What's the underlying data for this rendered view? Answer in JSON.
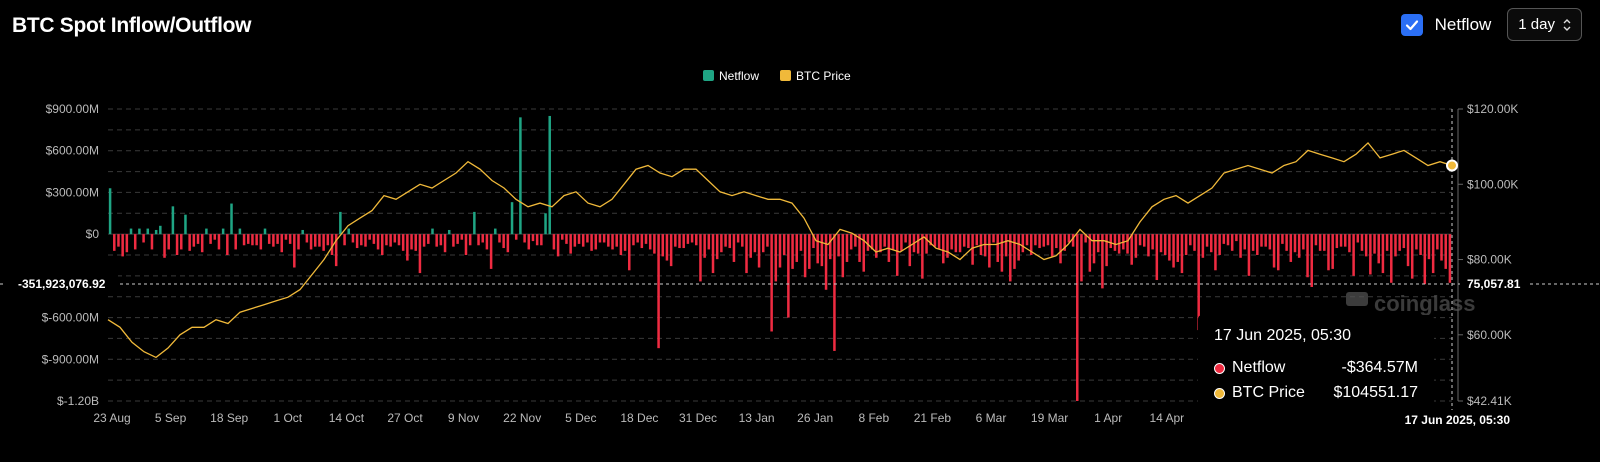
{
  "header": {
    "title": "BTC Spot Inflow/Outflow",
    "netflow_toggle_label": "Netflow",
    "interval_value": "1 day"
  },
  "colors": {
    "positive": "#1fa584",
    "negative": "#ef2b41",
    "price": "#f0b93a",
    "checkbox": "#2b6ff5",
    "grid": "#3a3a3a"
  },
  "tooltip": {
    "date": "17 Jun 2025, 05:30",
    "rows": [
      {
        "name": "Netflow",
        "value": "-$364.57M",
        "color": "#ef2b41"
      },
      {
        "name": "BTC Price",
        "value": "$104551.17",
        "color": "#f0b93a"
      }
    ]
  },
  "crosshair": {
    "left_label": "-351,923,076.92",
    "right_label": "75,057.81",
    "x_label": "17 Jun 2025, 05:30"
  },
  "watermark": "coinglass",
  "chart_data": {
    "type": "bar",
    "title": "BTC Spot Inflow/Outflow",
    "legend": [
      "Netflow",
      "BTC Price"
    ],
    "legend_position": "top-center",
    "grid": true,
    "x_ticks": [
      "23 Aug",
      "5 Sep",
      "18 Sep",
      "1 Oct",
      "14 Oct",
      "27 Oct",
      "9 Nov",
      "22 Nov",
      "5 Dec",
      "18 Dec",
      "31 Dec",
      "13 Jan",
      "26 Jan",
      "8 Feb",
      "21 Feb",
      "6 Mar",
      "19 Mar",
      "1 Apr",
      "14 Apr"
    ],
    "y_left_ticks": [
      "$900.00M",
      "$600.00M",
      "$300.00M",
      "$0",
      "$-600.00M",
      "$-900.00M",
      "$-1.20B"
    ],
    "y_left_range": [
      -1200,
      900
    ],
    "y_right_ticks": [
      "$120.00K",
      "$100.00K",
      "$80.00K",
      "$60.00K",
      "$42.41K"
    ],
    "y_right_range": [
      42410,
      120000
    ],
    "series": [
      {
        "name": "Netflow",
        "unit": "USD millions",
        "values": [
          330,
          -120,
          -90,
          -160,
          -130,
          40,
          -110,
          40,
          -60,
          40,
          -110,
          30,
          60,
          -170,
          -110,
          200,
          -150,
          -110,
          140,
          -120,
          -90,
          -70,
          -130,
          40,
          -70,
          -40,
          -110,
          40,
          -150,
          220,
          -110,
          40,
          -80,
          -70,
          -80,
          -80,
          -110,
          40,
          -70,
          -90,
          -70,
          -130,
          -40,
          -70,
          -240,
          -110,
          30,
          -60,
          -110,
          -90,
          -90,
          -120,
          -80,
          -150,
          -230,
          160,
          -80,
          40,
          -60,
          -100,
          -80,
          -90,
          -40,
          -70,
          -110,
          -150,
          -80,
          -90,
          -60,
          -80,
          -120,
          -190,
          -110,
          -120,
          -280,
          -90,
          -70,
          40,
          -90,
          -80,
          -130,
          30,
          -90,
          -70,
          -40,
          -150,
          -80,
          160,
          -80,
          -60,
          -110,
          -250,
          40,
          -60,
          -100,
          -130,
          230,
          -40,
          840,
          -60,
          -110,
          -50,
          -80,
          -80,
          150,
          850,
          -110,
          -160,
          -40,
          -70,
          -140,
          -90,
          -70,
          -90,
          -60,
          -120,
          -110,
          -60,
          -60,
          -90,
          -110,
          -90,
          -150,
          -120,
          -260,
          -80,
          -60,
          -100,
          -70,
          -110,
          -140,
          -820,
          -160,
          -190,
          -230,
          -90,
          -100,
          -100,
          -70,
          -60,
          -80,
          -340,
          -170,
          -110,
          -280,
          -180,
          -130,
          -90,
          -100,
          -200,
          -60,
          -90,
          -280,
          -170,
          -130,
          -240,
          -130,
          -90,
          -700,
          -340,
          -240,
          -150,
          -600,
          -250,
          -200,
          -120,
          -310,
          -250,
          -100,
          -210,
          -230,
          -400,
          -180,
          -840,
          -160,
          -310,
          -200,
          -110,
          -90,
          -200,
          -270,
          -120,
          -110,
          -170,
          -130,
          -90,
          -200,
          -110,
          -300,
          -120,
          -60,
          -230,
          -130,
          -140,
          -320,
          -140,
          -80,
          -90,
          -110,
          -210,
          -170,
          -110,
          -130,
          -130,
          -90,
          -100,
          -220,
          -80,
          -150,
          -160,
          -240,
          -60,
          -200,
          -270,
          -160,
          -340,
          -250,
          -190,
          -130,
          -80,
          -150,
          -80,
          -100,
          -90,
          -80,
          -160,
          -100,
          -210,
          -120,
          -60,
          -90,
          -1200,
          -340,
          -60,
          -270,
          -210,
          -130,
          -390,
          -230,
          -100,
          -120,
          -140,
          -110,
          -140,
          -220,
          -170,
          -80,
          -90,
          -160,
          -110,
          -330,
          -130,
          -150,
          -190,
          -240,
          -200,
          -280,
          -150,
          -80,
          -120,
          -690,
          -170,
          -90,
          -130,
          -260,
          -150,
          -70,
          -80,
          -120,
          -50,
          -170,
          -110,
          -300,
          -120,
          -150,
          -90,
          -90,
          -110,
          -240,
          -260,
          -70,
          -120,
          -200,
          -130,
          -170,
          -110,
          -310,
          -380,
          -80,
          -120,
          -120,
          -260,
          -250,
          -100,
          -90,
          -90,
          -130,
          -300,
          -60,
          -120,
          -160,
          -290,
          -140,
          -210,
          -280,
          -120,
          -350,
          -160,
          -120,
          -100,
          -230,
          -320,
          -110,
          -150,
          -360,
          -180,
          -280,
          -110,
          -190,
          -250,
          -350
        ]
      },
      {
        "name": "BTC Price",
        "unit": "USD",
        "values": [
          64000,
          62000,
          58000,
          55500,
          54000,
          56500,
          60000,
          62000,
          62000,
          64000,
          63000,
          66000,
          67000,
          68000,
          69000,
          70000,
          72000,
          76000,
          80000,
          85000,
          89000,
          91000,
          93000,
          97000,
          96000,
          98000,
          100000,
          99000,
          101000,
          103000,
          106000,
          104000,
          101000,
          99000,
          96000,
          94000,
          95000,
          94000,
          97000,
          98000,
          95000,
          94000,
          96000,
          100000,
          104000,
          105000,
          103000,
          102000,
          104000,
          104000,
          101000,
          98000,
          97000,
          98000,
          97000,
          96000,
          96000,
          95000,
          91000,
          85000,
          84000,
          88000,
          87000,
          85000,
          82000,
          83000,
          82000,
          84000,
          86000,
          83000,
          82000,
          80000,
          83000,
          84000,
          84000,
          85000,
          84000,
          82000,
          80000,
          81000,
          84000,
          88000,
          85000,
          85000,
          84000,
          85000,
          90000,
          94000,
          96000,
          97000,
          95000,
          97000,
          99000,
          103000,
          104000,
          105000,
          104000,
          103000,
          105000,
          106000,
          109000,
          108000,
          107000,
          106000,
          108000,
          111000,
          107000,
          108000,
          109000,
          107000,
          105000,
          106000,
          105000
        ]
      }
    ]
  }
}
